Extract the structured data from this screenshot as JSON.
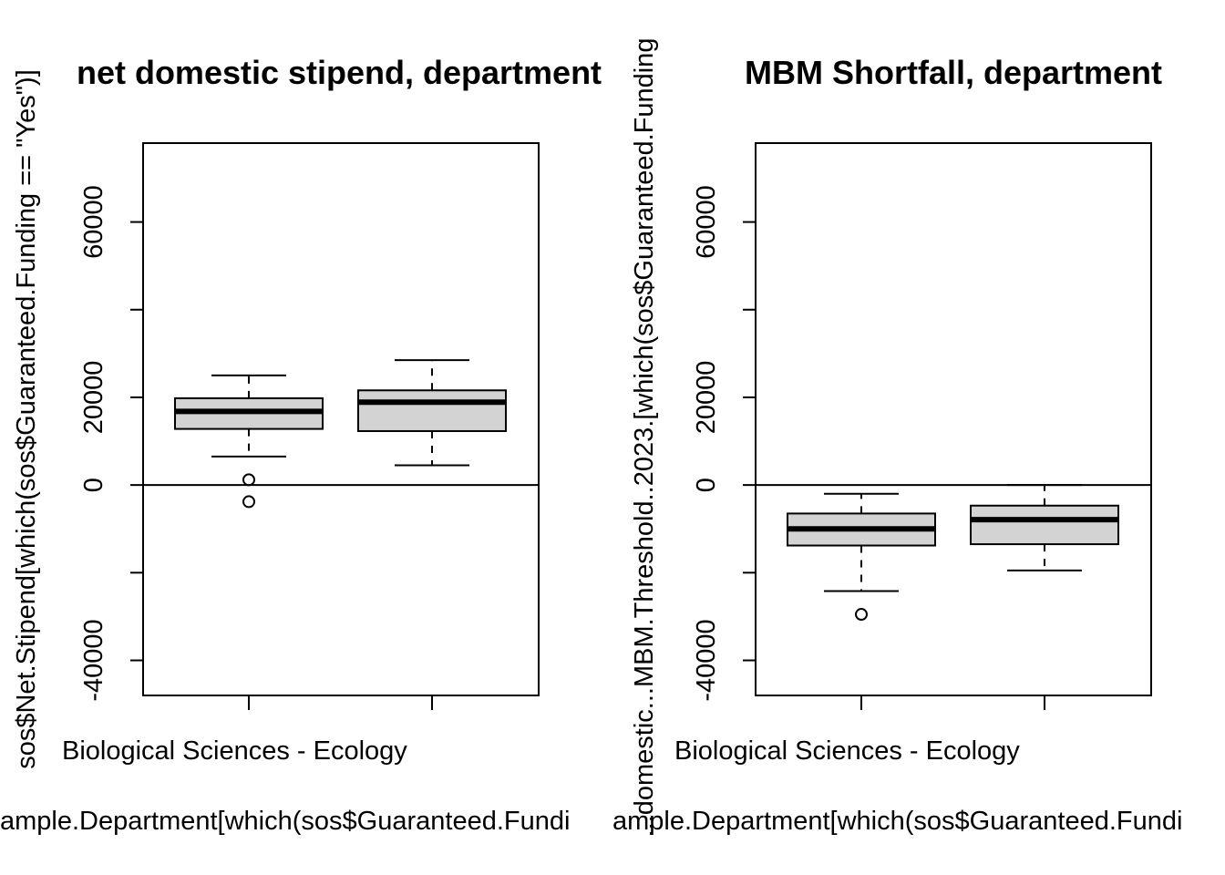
{
  "chart_data": [
    {
      "type": "boxplot",
      "title": "net domestic stipend, department",
      "xlabel": "ample.Department[which(sos$Guaranteed.Fundi",
      "ylabel": "sos$Net.Stipend[which(sos$Guaranteed.Funding == \"Yes\")]",
      "ylim": [
        -48000,
        78000
      ],
      "yticks": [
        -40000,
        -20000,
        0,
        20000,
        40000,
        60000
      ],
      "ytick_labels": [
        "-40000",
        "",
        "0",
        "20000",
        "",
        "60000"
      ],
      "categories": [
        "Biological Sciences - Ecology",
        ""
      ],
      "category_labels_shown": [
        "Biological Sciences - Ecology",
        ""
      ],
      "reference_line": 0,
      "boxes": [
        {
          "whisker_low": 6500,
          "q1": 12800,
          "median": 16800,
          "q3": 19800,
          "whisker_high": 25000,
          "outliers": [
            1200,
            -3800
          ]
        },
        {
          "whisker_low": 4500,
          "q1": 12300,
          "median": 18900,
          "q3": 21600,
          "whisker_high": 28500,
          "outliers": []
        }
      ],
      "box_fill": "#d3d3d3"
    },
    {
      "type": "boxplot",
      "title": "MBM Shortfall, department",
      "xlabel": "ample.Department[which(sos$Guaranteed.Fundi",
      "ylabel": "...domestic...MBM.Threshold..2023.[which(sos$Guaranteed.Funding",
      "ylim": [
        -48000,
        78000
      ],
      "yticks": [
        -40000,
        -20000,
        0,
        20000,
        40000,
        60000
      ],
      "ytick_labels": [
        "-40000",
        "",
        "0",
        "20000",
        "",
        "60000"
      ],
      "categories": [
        "Biological Sciences - Ecology",
        ""
      ],
      "category_labels_shown": [
        "Biological Sciences - Ecology",
        ""
      ],
      "reference_line": 0,
      "boxes": [
        {
          "whisker_low": -24200,
          "q1": -13800,
          "median": -10000,
          "q3": -6500,
          "whisker_high": -2000,
          "outliers": [
            -29500
          ]
        },
        {
          "whisker_low": -19500,
          "q1": -13500,
          "median": -7900,
          "q3": -4700,
          "whisker_high": 0,
          "outliers": []
        }
      ],
      "box_fill": "#d3d3d3"
    }
  ]
}
